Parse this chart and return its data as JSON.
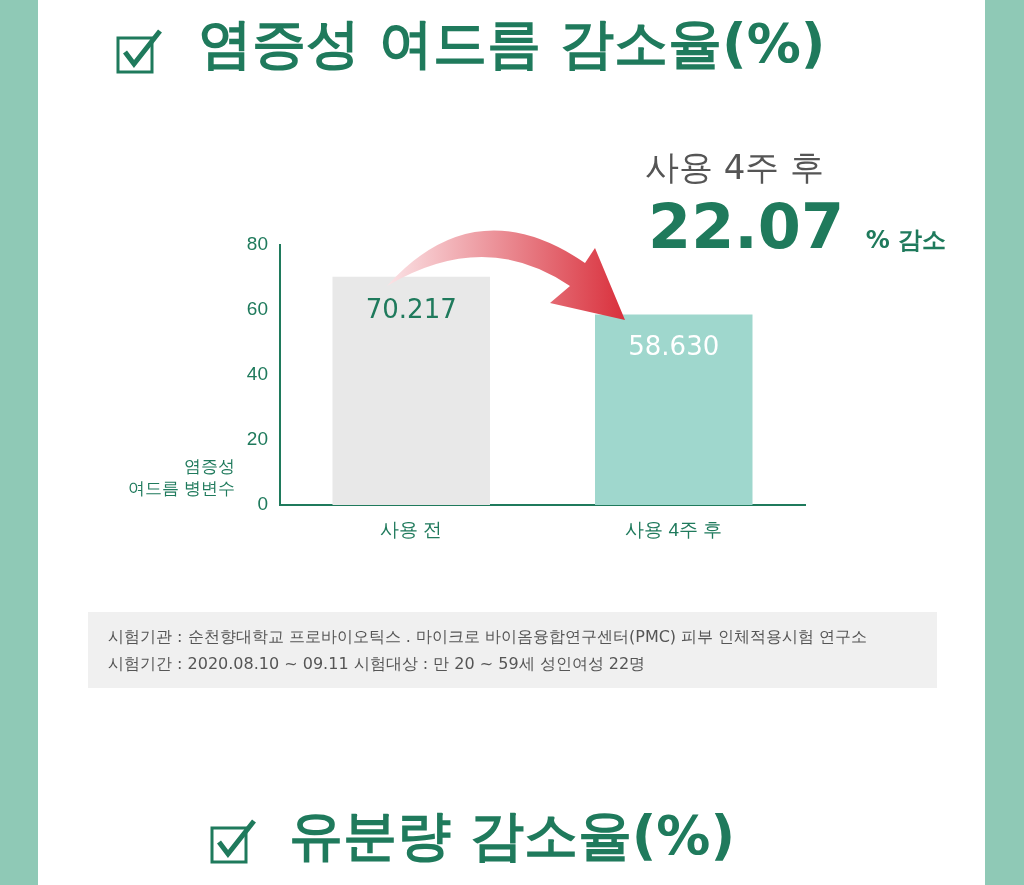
{
  "chart_data": {
    "type": "bar",
    "title": "염증성 여드름 감소율(%)",
    "ylabel": "염증성\n여드름 병변수",
    "categories": [
      "사용 전",
      "사용 4주 후"
    ],
    "values": [
      70.217,
      58.63
    ],
    "value_labels": [
      "70.217",
      "58.630"
    ],
    "colors": [
      "#e8e8e8",
      "#9fd7cd"
    ],
    "ylim": [
      0,
      80
    ],
    "yticks": [
      0,
      20,
      40,
      60,
      80
    ],
    "grid": false,
    "legend": false,
    "annotations": [
      "사용 4주 후",
      "22.07 % 감소",
      "시험기관 : 순천향대학교 프로바이오틱스 . 마이크로 바이옴융합연구센터(PMC) 피부 인체적용시험 연구소",
      "시험기간 : 2020.08.10 ~ 09.11  시험대상 : 만 20 ~ 59세 성인여성 22명",
      "유분량 감소율(%)"
    ]
  }
}
